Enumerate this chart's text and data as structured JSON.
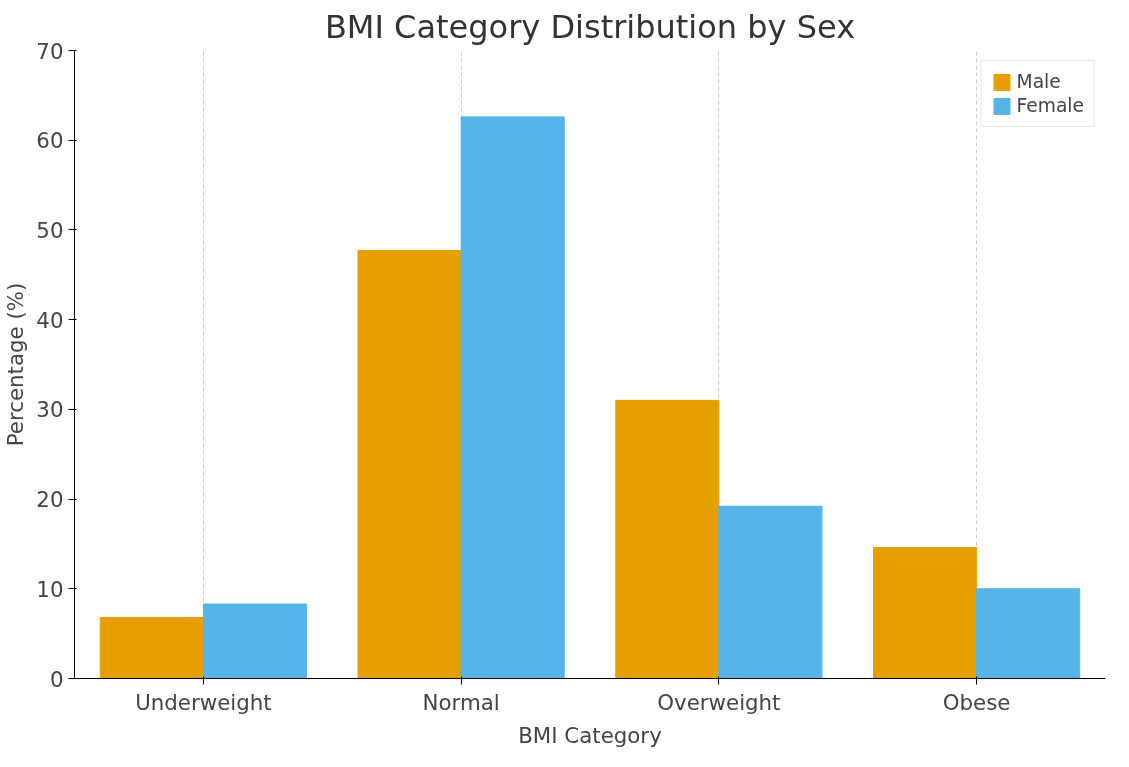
{
  "chart_data": {
    "type": "bar",
    "title": "BMI Category Distribution by Sex",
    "xlabel": "BMI Category",
    "ylabel": "Percentage (%)",
    "categories": [
      "Underweight",
      "Normal",
      "Overweight",
      "Obese"
    ],
    "series": [
      {
        "name": "Male",
        "color": "#e69f00",
        "values": [
          6.8,
          47.7,
          31.0,
          14.6
        ]
      },
      {
        "name": "Female",
        "color": "#56b4e9",
        "values": [
          8.3,
          62.6,
          19.2,
          10.0
        ]
      }
    ],
    "ylim": [
      0,
      70
    ],
    "yticks": [
      0,
      10,
      20,
      30,
      40,
      50,
      60,
      70
    ],
    "grid": "x",
    "legend": "top right"
  }
}
